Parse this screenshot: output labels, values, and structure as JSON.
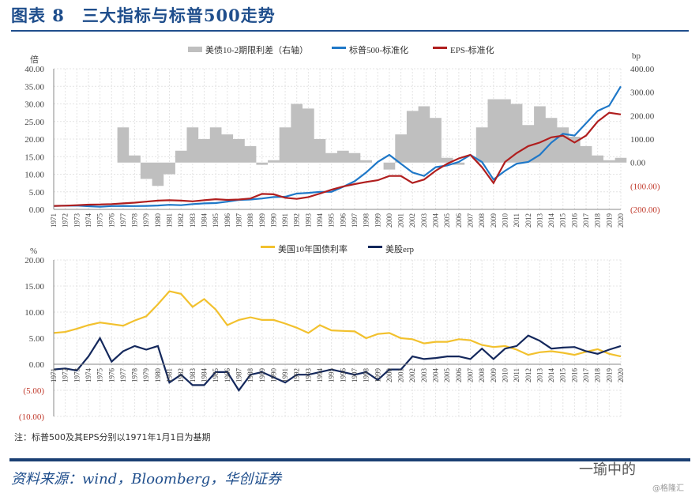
{
  "header": {
    "title": "图表 8　三大指标与标普500走势"
  },
  "footer": {
    "note": "注：标普500及其EPS分别以1971年1月1日为基期",
    "source": "资料来源：wind，Bloomberg，华创证券",
    "watermark": "一瑜中的",
    "watermark2": "@格隆汇"
  },
  "colors": {
    "spread": "#bfbfbf",
    "sp500": "#1f78c8",
    "eps": "#b01e1e",
    "yield": "#f2c12e",
    "erp": "#14285c",
    "accent": "#1f4e8c"
  },
  "chart_data": [
    {
      "type": "line",
      "title": "",
      "legend_position": "top",
      "x_label_unit": "year",
      "left_unit": "倍",
      "right_unit": "bp",
      "yticks_left": [
        "40.00",
        "35.00",
        "30.00",
        "25.00",
        "20.00",
        "15.00",
        "10.00",
        "5.00",
        "0.00"
      ],
      "yticks_right": [
        "400.00",
        "300.00",
        "200.00",
        "100.00",
        "0.00",
        "(100.00)",
        "(200.00)"
      ],
      "ylim_left": [
        0,
        40
      ],
      "ylim_right": [
        -200,
        400
      ],
      "x": [
        1971,
        1972,
        1973,
        1974,
        1975,
        1976,
        1977,
        1978,
        1979,
        1980,
        1981,
        1982,
        1983,
        1984,
        1985,
        1986,
        1987,
        1988,
        1989,
        1990,
        1991,
        1992,
        1993,
        1994,
        1995,
        1996,
        1997,
        1998,
        1999,
        2000,
        2001,
        2002,
        2003,
        2004,
        2005,
        2006,
        2007,
        2008,
        2009,
        2010,
        2011,
        2012,
        2013,
        2014,
        2015,
        2016,
        2017,
        2018,
        2019,
        2020
      ],
      "series": [
        {
          "name": "美债10-2期限利差（右轴）",
          "type": "area",
          "axis": "right",
          "values": [
            null,
            null,
            null,
            null,
            null,
            null,
            150,
            30,
            -70,
            -100,
            -50,
            50,
            150,
            100,
            150,
            120,
            100,
            70,
            -10,
            10,
            150,
            250,
            230,
            100,
            40,
            50,
            40,
            10,
            0,
            -30,
            120,
            220,
            240,
            190,
            20,
            -10,
            0,
            150,
            270,
            270,
            250,
            160,
            240,
            190,
            150,
            110,
            70,
            30,
            10,
            20
          ]
        },
        {
          "name": "标普500-标准化",
          "axis": "left",
          "values": [
            1.0,
            1.05,
            1.1,
            0.9,
            0.75,
            0.95,
            1.0,
            0.95,
            0.98,
            1.1,
            1.3,
            1.2,
            1.5,
            1.7,
            1.8,
            2.2,
            2.7,
            2.8,
            3.1,
            3.5,
            3.6,
            4.5,
            4.7,
            5.0,
            5.0,
            6.4,
            8.0,
            10.5,
            13.5,
            15.5,
            13.0,
            10.5,
            9.5,
            12.0,
            12.5,
            13.5,
            15.5,
            13.5,
            8.5,
            11.0,
            13.0,
            13.5,
            15.5,
            19.0,
            21.5,
            21.0,
            24.5,
            28.0,
            29.5,
            35.0
          ]
        },
        {
          "name": "EPS-标准化",
          "axis": "left",
          "values": [
            1.0,
            1.05,
            1.2,
            1.35,
            1.4,
            1.5,
            1.7,
            1.9,
            2.2,
            2.5,
            2.6,
            2.5,
            2.3,
            2.6,
            2.9,
            2.7,
            2.8,
            3.1,
            4.4,
            4.3,
            3.3,
            3.0,
            3.5,
            4.5,
            5.6,
            6.5,
            7.2,
            7.8,
            8.3,
            9.5,
            9.5,
            7.5,
            8.5,
            11.0,
            13.0,
            14.5,
            15.5,
            12.0,
            7.5,
            13.5,
            16.0,
            18.0,
            19.0,
            20.5,
            21.0,
            19.0,
            21.0,
            25.0,
            27.5,
            27.0
          ]
        }
      ]
    },
    {
      "type": "line",
      "title": "",
      "legend_position": "top",
      "left_unit": "%",
      "yticks_left": [
        "20.00",
        "15.00",
        "10.00",
        "5.00",
        "0.00",
        "(5.00)",
        "(10.00)"
      ],
      "ylim_left": [
        -10,
        20
      ],
      "x": [
        1971,
        1972,
        1973,
        1974,
        1975,
        1976,
        1977,
        1978,
        1979,
        1980,
        1981,
        1982,
        1983,
        1984,
        1985,
        1986,
        1987,
        1988,
        1989,
        1990,
        1991,
        1992,
        1993,
        1994,
        1995,
        1996,
        1997,
        1998,
        1999,
        2000,
        2001,
        2002,
        2003,
        2004,
        2005,
        2006,
        2007,
        2008,
        2009,
        2010,
        2011,
        2012,
        2013,
        2014,
        2015,
        2016,
        2017,
        2018,
        2019,
        2020
      ],
      "series": [
        {
          "name": "美国10年国债利率",
          "values": [
            6.0,
            6.2,
            6.8,
            7.5,
            8.0,
            7.7,
            7.4,
            8.4,
            9.2,
            11.5,
            14.0,
            13.5,
            11.0,
            12.5,
            10.5,
            7.5,
            8.5,
            9.0,
            8.5,
            8.5,
            7.8,
            7.0,
            6.0,
            7.5,
            6.5,
            6.4,
            6.3,
            5.0,
            5.8,
            6.0,
            5.0,
            4.8,
            4.0,
            4.3,
            4.3,
            4.8,
            4.6,
            3.7,
            3.3,
            3.5,
            2.8,
            1.8,
            2.3,
            2.5,
            2.2,
            1.8,
            2.4,
            2.9,
            2.0,
            1.5
          ]
        },
        {
          "name": "美股erp",
          "values": [
            -1.0,
            -0.8,
            -1.2,
            1.5,
            5.0,
            0.5,
            2.5,
            3.5,
            2.8,
            3.5,
            -3.5,
            -2.0,
            -4.0,
            -4.0,
            -1.5,
            -1.5,
            -5.0,
            -2.0,
            -1.5,
            -2.5,
            -3.5,
            -2.0,
            -2.0,
            -1.5,
            -1.0,
            -1.5,
            -2.0,
            -1.5,
            -3.0,
            -1.0,
            -1.0,
            1.5,
            1.0,
            1.2,
            1.5,
            1.5,
            1.0,
            3.0,
            1.0,
            3.0,
            3.5,
            5.5,
            4.5,
            3.0,
            3.2,
            3.3,
            2.5,
            2.0,
            2.8,
            3.5
          ]
        }
      ]
    }
  ]
}
